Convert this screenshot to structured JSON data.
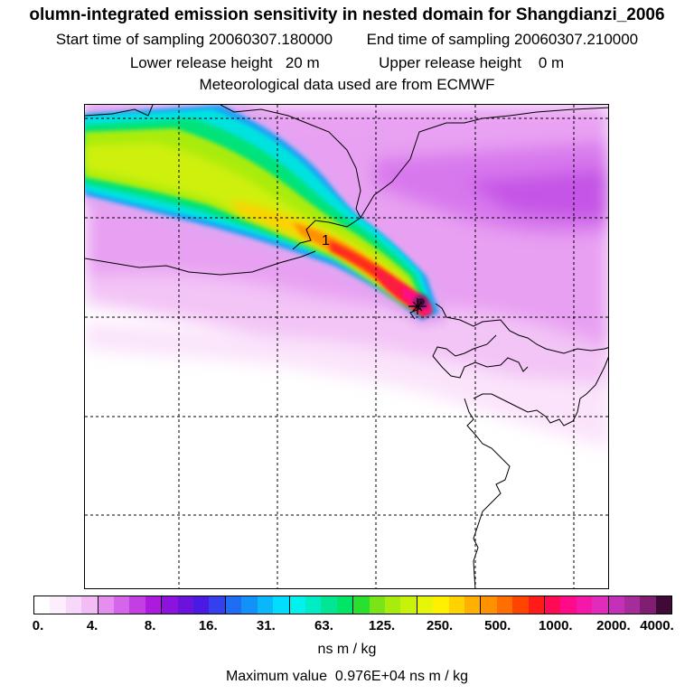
{
  "header": {
    "title": "olumn-integrated emission sensitivity in nested domain for Shangdianzi_2006",
    "start_label": "Start time of sampling",
    "start_value": "20060307.180000",
    "end_label": "End time of sampling",
    "end_value": "20060307.210000",
    "lower_label": "Lower release height",
    "lower_value": "20 m",
    "upper_label": "Upper release height",
    "upper_value": "0 m",
    "met_text": "Meteorological data used are from ECMWF"
  },
  "map": {
    "release_marker_label": "1"
  },
  "legend": {
    "ticks": [
      "0.",
      "4.",
      "8.",
      "16.",
      "31.",
      "63.",
      "125.",
      "250.",
      "500.",
      "1000.",
      "2000.",
      "4000."
    ],
    "colors": [
      "#ffffff",
      "#fdeefd",
      "#f8d8fa",
      "#f2bcf5",
      "#e58ef0",
      "#d566ea",
      "#c33ee3",
      "#ad19dd",
      "#8b13dd",
      "#6913dd",
      "#4a19e2",
      "#3440ee",
      "#1f6cf5",
      "#1292f8",
      "#0bb7fb",
      "#00ddff",
      "#00f2ee",
      "#00ecc4",
      "#00e694",
      "#00e566",
      "#2ae02e",
      "#79e417",
      "#a8ec0d",
      "#c9f20b",
      "#e6f60b",
      "#fff000",
      "#ffd200",
      "#ffb000",
      "#ff9000",
      "#ff6e00",
      "#ff4400",
      "#ff1b18",
      "#ff0a55",
      "#ff0a88",
      "#f418a8",
      "#e02bbc",
      "#c530b8",
      "#a62c9c",
      "#801e72",
      "#3f0a35"
    ],
    "units": "ns m / kg",
    "max_label": "Maximum value",
    "max_value": "0.976E+04 ns m / kg"
  }
}
